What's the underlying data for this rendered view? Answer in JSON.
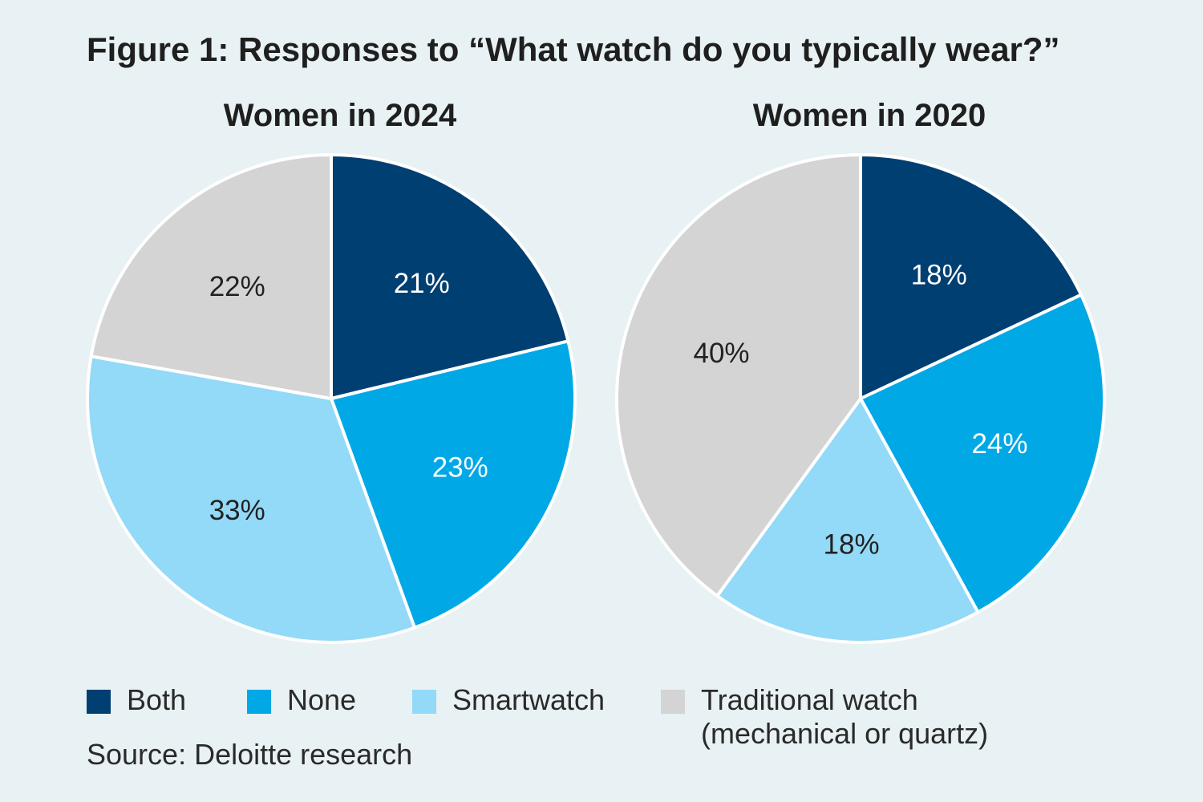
{
  "title": "Figure 1: Responses to “What watch do you typically wear?”",
  "source": "Source: Deloitte research",
  "legend": [
    {
      "label": "Both",
      "color": "#003f72"
    },
    {
      "label": "None",
      "color": "#00a8e6"
    },
    {
      "label": "Smartwatch",
      "color": "#93d9f8"
    },
    {
      "label": "Traditional watch",
      "label_line2": "(mechanical or quartz)",
      "color": "#d4d4d4"
    }
  ],
  "chart_data": [
    {
      "type": "pie",
      "title": "Women in 2024",
      "categories": [
        "Both",
        "None",
        "Smartwatch",
        "Traditional watch (mechanical or quartz)"
      ],
      "values": [
        21,
        23,
        33,
        22
      ],
      "labels": [
        "21%",
        "23%",
        "33%",
        "22%"
      ],
      "colors": [
        "#003f72",
        "#00a8e6",
        "#93d9f8",
        "#d4d4d4"
      ],
      "label_colors": [
        "#ffffff",
        "#ffffff",
        "#222222",
        "#222222"
      ],
      "start": "12 o'clock",
      "direction": "clockwise"
    },
    {
      "type": "pie",
      "title": "Women in 2020",
      "categories": [
        "Both",
        "None",
        "Smartwatch",
        "Traditional watch (mechanical or quartz)"
      ],
      "values": [
        18,
        24,
        18,
        40
      ],
      "labels": [
        "18%",
        "24%",
        "18%",
        "40%"
      ],
      "colors": [
        "#003f72",
        "#00a8e6",
        "#93d9f8",
        "#d4d4d4"
      ],
      "label_colors": [
        "#ffffff",
        "#ffffff",
        "#222222",
        "#222222"
      ],
      "start": "12 o'clock",
      "direction": "clockwise"
    }
  ]
}
